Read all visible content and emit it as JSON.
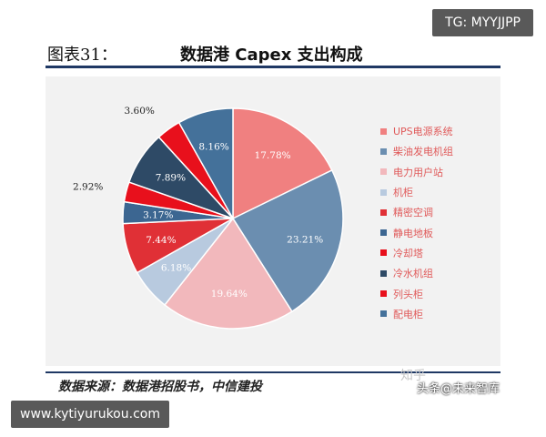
{
  "watermarks": {
    "top_tag": "TG: MYYJJPP",
    "bottom_tag": "www.kytiyurukou.com",
    "zhihu": "知乎",
    "toutiao": "头条@未来智库"
  },
  "chart_data": {
    "type": "pie",
    "title_prefix": "图表31：",
    "title": "数据港 Capex 支出构成",
    "source": "数据来源：数据港招股书，中信建投",
    "legend_placement": "right",
    "series": [
      {
        "name": "UPS电源系统",
        "value": 17.78,
        "label": "17.78%",
        "color": "#f08080"
      },
      {
        "name": "柴油发电机组",
        "value": 23.21,
        "label": "23.21%",
        "color": "#6b8eb0"
      },
      {
        "name": "电力用户站",
        "value": 19.64,
        "label": "19.64%",
        "color": "#f2b8bc"
      },
      {
        "name": "机柜",
        "value": 6.18,
        "label": "6.18%",
        "color": "#b8cadf"
      },
      {
        "name": "精密空调",
        "value": 7.44,
        "label": "7.44%",
        "color": "#e03036"
      },
      {
        "name": "静电地板",
        "value": 3.17,
        "label": "3.17%",
        "color": "#3c6691"
      },
      {
        "name": "冷却塔",
        "value": 2.92,
        "label": "2.92%",
        "color": "#e8101c"
      },
      {
        "name": "冷水机组",
        "value": 7.89,
        "label": "7.89%",
        "color": "#2e4a66"
      },
      {
        "name": "列头柜",
        "value": 3.6,
        "label": "3.60%",
        "color": "#e8101c"
      },
      {
        "name": "配电柜",
        "value": 8.16,
        "label": "8.16%",
        "color": "#44719a"
      }
    ]
  }
}
